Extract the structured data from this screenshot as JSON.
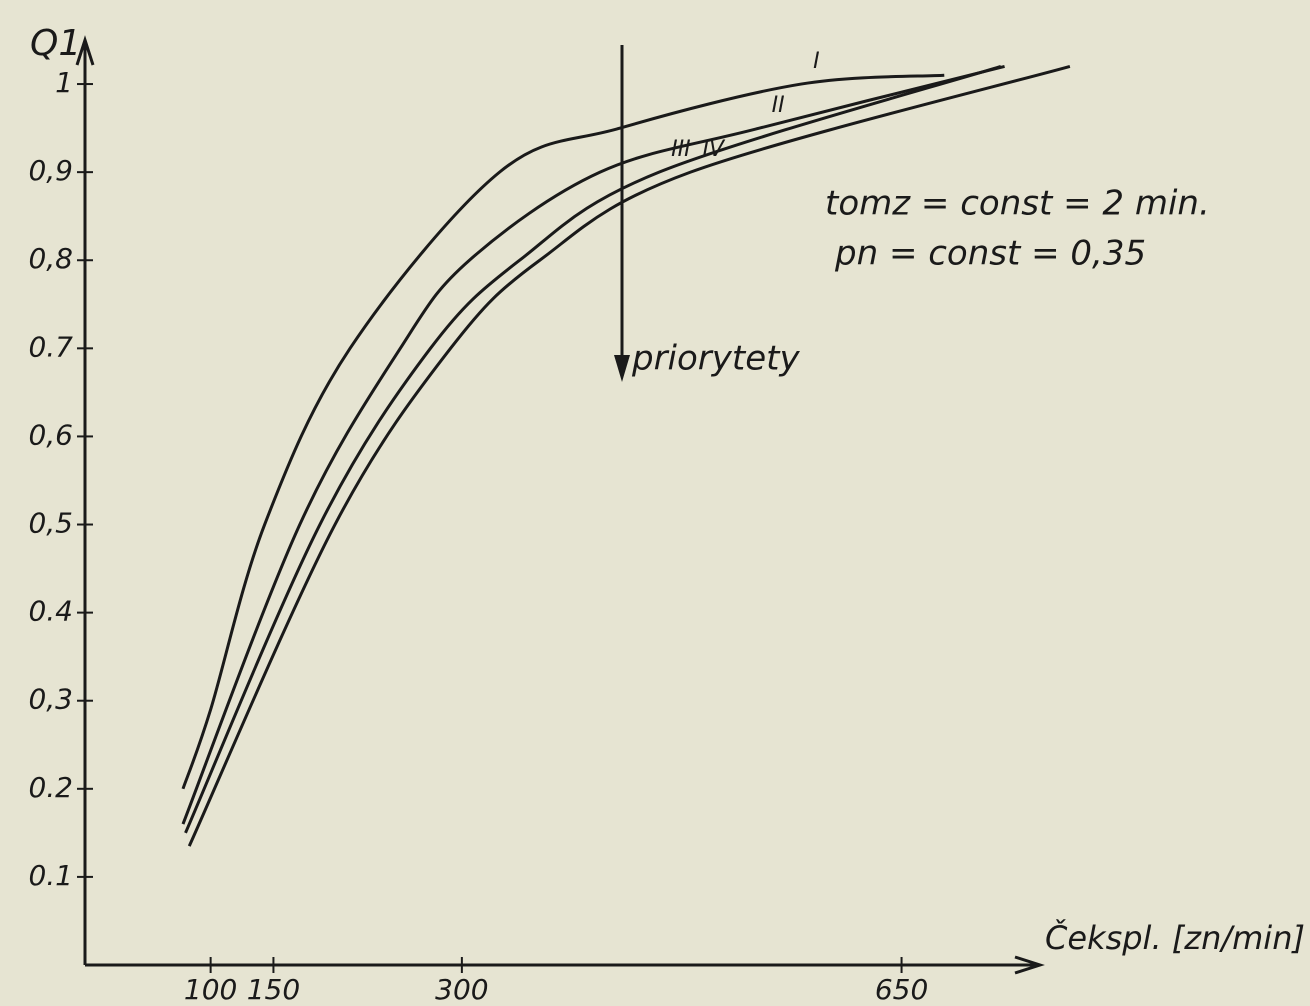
{
  "chart_data": {
    "type": "line",
    "y_label": "Q1",
    "x_label": "Čekspl. [zn/min]",
    "annotations": [
      "tomz = const = 2 min.",
      "pn = const = 0,35",
      "priorytety"
    ],
    "xlim": [
      0,
      800
    ],
    "ylim": [
      0,
      1.05
    ],
    "xticks": [
      100,
      150,
      300,
      650
    ],
    "yticks": [
      0.1,
      0.2,
      {
        "value": 0.3,
        "label": "0,3"
      },
      0.4,
      {
        "value": 0.5,
        "label": "0,5"
      },
      {
        "value": 0.6,
        "label": "0,6"
      },
      0.7,
      {
        "value": 0.8,
        "label": "0,8"
      },
      {
        "value": 0.9,
        "label": "0,9"
      },
      1
    ],
    "series": [
      {
        "name": "I",
        "color": "#1a1a1a",
        "x": [
          78,
          100,
          143,
          211,
          330,
          426,
          570,
          684
        ],
        "values": [
          0.2,
          0.29,
          0.5,
          0.7,
          0.9,
          0.95,
          1.0,
          1.01
        ]
      },
      {
        "name": "II",
        "color": "#1a1a1a",
        "x": [
          78,
          171,
          251,
          306,
          410,
          537,
          732
        ],
        "values": [
          0.16,
          0.5,
          0.7,
          0.8,
          0.9,
          0.95,
          1.02
        ]
      },
      {
        "name": "III",
        "color": "#1a1a1a",
        "x": [
          80,
          187,
          275,
          346,
          457,
          729
        ],
        "values": [
          0.15,
          0.5,
          0.7,
          0.8,
          0.9,
          1.02
        ]
      },
      {
        "name": "IV",
        "color": "#1a1a1a",
        "x": [
          83,
          199,
          291,
          362,
          482,
          784
        ],
        "values": [
          0.135,
          0.5,
          0.7,
          0.8,
          0.9,
          1.02
        ]
      }
    ]
  }
}
